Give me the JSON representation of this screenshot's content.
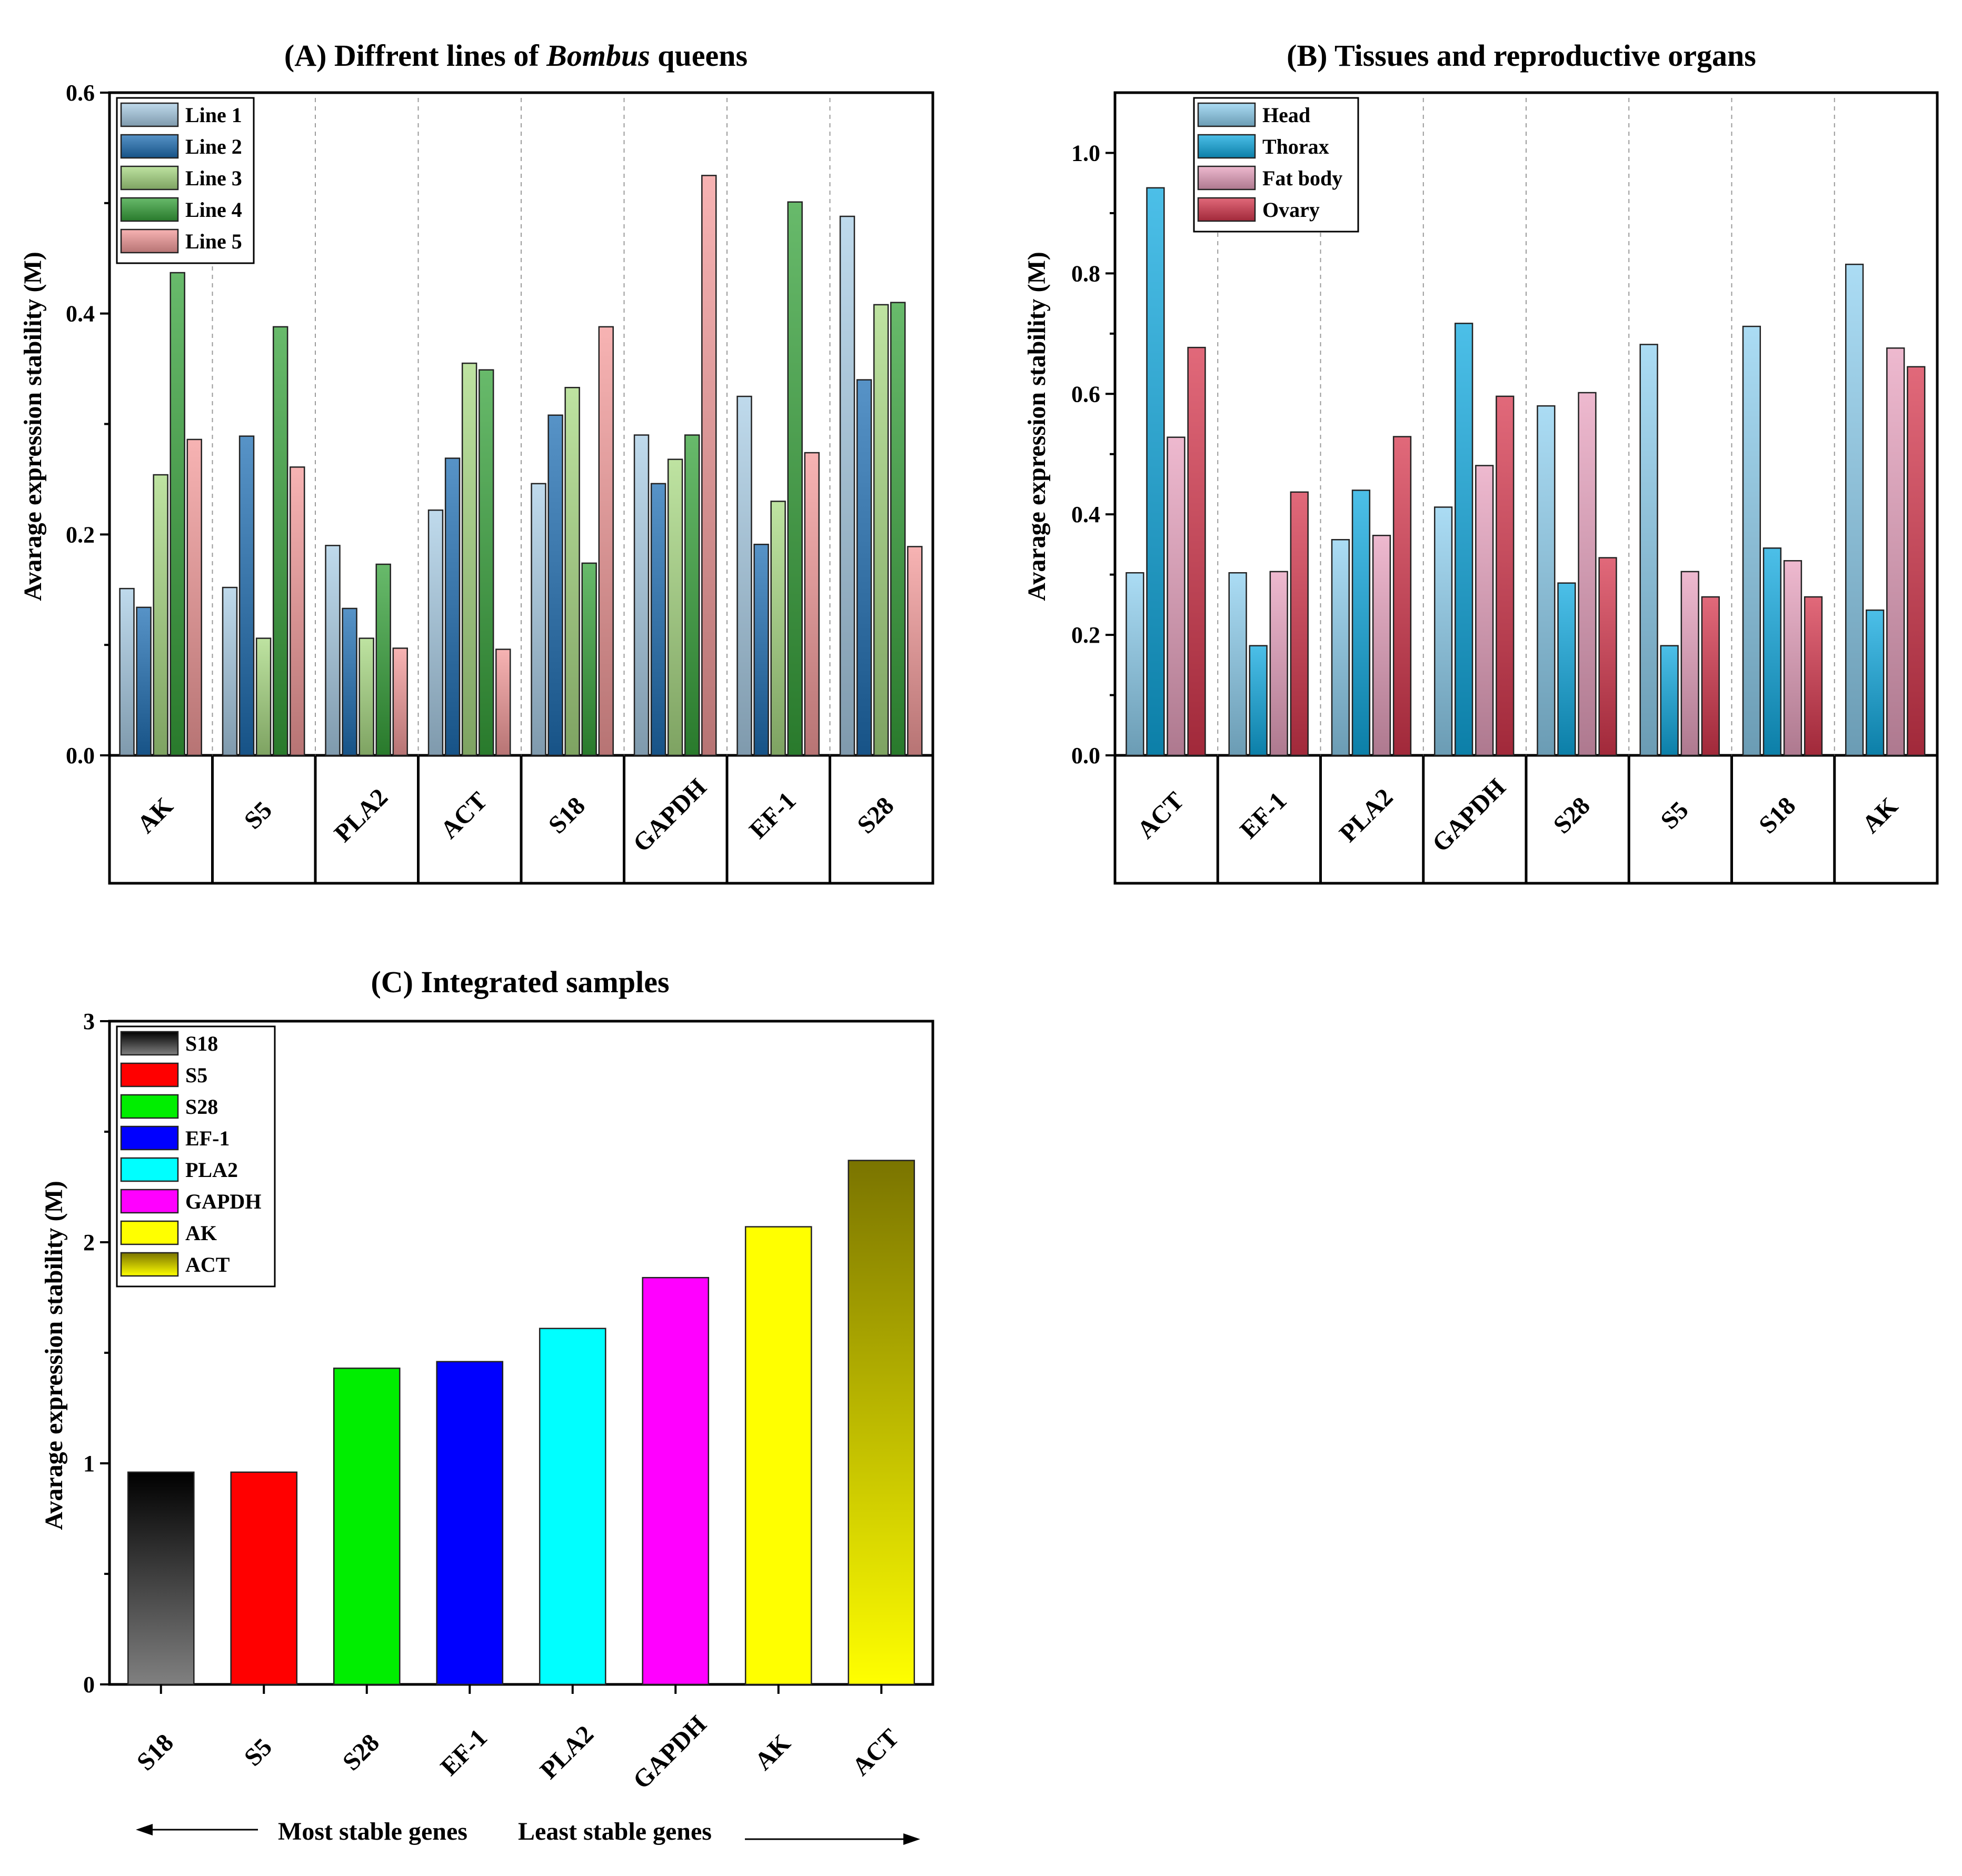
{
  "chart_data": [
    {
      "id": "A",
      "type": "bar",
      "title": "(A) Diffrent lines of Bombus queens",
      "title_parts": [
        "(A) Diffrent lines of ",
        "Bombus",
        " queens"
      ],
      "ylabel": "Avarage expression stability (M)",
      "xlabel": "",
      "ylim": [
        0,
        0.6
      ],
      "yticks": [
        "0.0",
        "0.2",
        "0.4",
        "0.6"
      ],
      "tick_values": [
        0,
        0.2,
        0.4,
        0.6
      ],
      "categories": [
        "AK",
        "S5",
        "PLA2",
        "ACT",
        "S18",
        "GAPDH",
        "EF-1",
        "S28"
      ],
      "series": [
        {
          "name": "Line 1",
          "color": "#a9cde6",
          "values": [
            0.151,
            0.152,
            0.19,
            0.222,
            0.246,
            0.29,
            0.325,
            0.488
          ]
        },
        {
          "name": "Line 2",
          "color": "#1f6fb4",
          "values": [
            0.134,
            0.289,
            0.133,
            0.269,
            0.308,
            0.246,
            0.191,
            0.34
          ]
        },
        {
          "name": "Line 3",
          "color": "#a8d982",
          "values": [
            0.254,
            0.106,
            0.106,
            0.355,
            0.333,
            0.268,
            0.23,
            0.408
          ]
        },
        {
          "name": "Line 4",
          "color": "#36a33a",
          "values": [
            0.437,
            0.388,
            0.173,
            0.349,
            0.174,
            0.29,
            0.501,
            0.41
          ]
        },
        {
          "name": "Line 5",
          "color": "#f49a9a",
          "values": [
            0.286,
            0.261,
            0.097,
            0.096,
            0.388,
            0.525,
            0.274,
            0.189
          ]
        }
      ],
      "legend_position": "top-left"
    },
    {
      "id": "B",
      "type": "bar",
      "title": "(B) Tissues and reproductive organs",
      "ylabel": "Avarage expression stability (M)",
      "xlabel": "",
      "ylim": [
        0,
        1.1
      ],
      "yticks": [
        "0.0",
        "0.2",
        "0.4",
        "0.6",
        "0.8",
        "1.0"
      ],
      "tick_values": [
        0,
        0.2,
        0.4,
        0.6,
        0.8,
        1.0
      ],
      "categories": [
        "ACT",
        "EF-1",
        "PLA2",
        "GAPDH",
        "S28",
        "S5",
        "S18",
        "AK"
      ],
      "series": [
        {
          "name": "Head",
          "color": "#8fd0f0",
          "values": [
            0.303,
            0.303,
            0.358,
            0.412,
            0.58,
            0.682,
            0.712,
            0.815
          ]
        },
        {
          "name": "Thorax",
          "color": "#10a9e0",
          "values": [
            0.942,
            0.182,
            0.44,
            0.717,
            0.286,
            0.182,
            0.344,
            0.241
          ]
        },
        {
          "name": "Fat body",
          "color": "#e8a1bf",
          "values": [
            0.528,
            0.305,
            0.365,
            0.481,
            0.602,
            0.305,
            0.323,
            0.676
          ]
        },
        {
          "name": "Ovary",
          "color": "#d7374d",
          "values": [
            0.677,
            0.437,
            0.529,
            0.596,
            0.328,
            0.263,
            0.263,
            0.645
          ]
        }
      ],
      "legend_position": "top-left"
    },
    {
      "id": "C",
      "type": "bar",
      "title": "(C) Integrated samples",
      "ylabel": "Avarage expression stability (M)",
      "xlabel": "",
      "ylim": [
        0,
        3
      ],
      "yticks": [
        "0",
        "1",
        "2",
        "3"
      ],
      "tick_values": [
        0,
        1,
        2,
        3
      ],
      "categories": [
        "S18",
        "S5",
        "S28",
        "EF-1",
        "PLA2",
        "GAPDH",
        "AK",
        "ACT"
      ],
      "values": [
        0.96,
        0.96,
        1.43,
        1.46,
        1.61,
        1.84,
        2.07,
        2.37
      ],
      "colors": [
        "#3a3a3a",
        "#ff0000",
        "#00ee00",
        "#0000ff",
        "#00ffff",
        "#ff00ff",
        "#ffff00",
        "#b5b300"
      ],
      "legend": [
        "S18",
        "S5",
        "S28",
        "EF-1",
        "PLA2",
        "GAPDH",
        "AK",
        "ACT"
      ],
      "legend_position": "top-left",
      "annotation_left": "Most stable genes",
      "annotation_right": "Least stable genes"
    }
  ]
}
